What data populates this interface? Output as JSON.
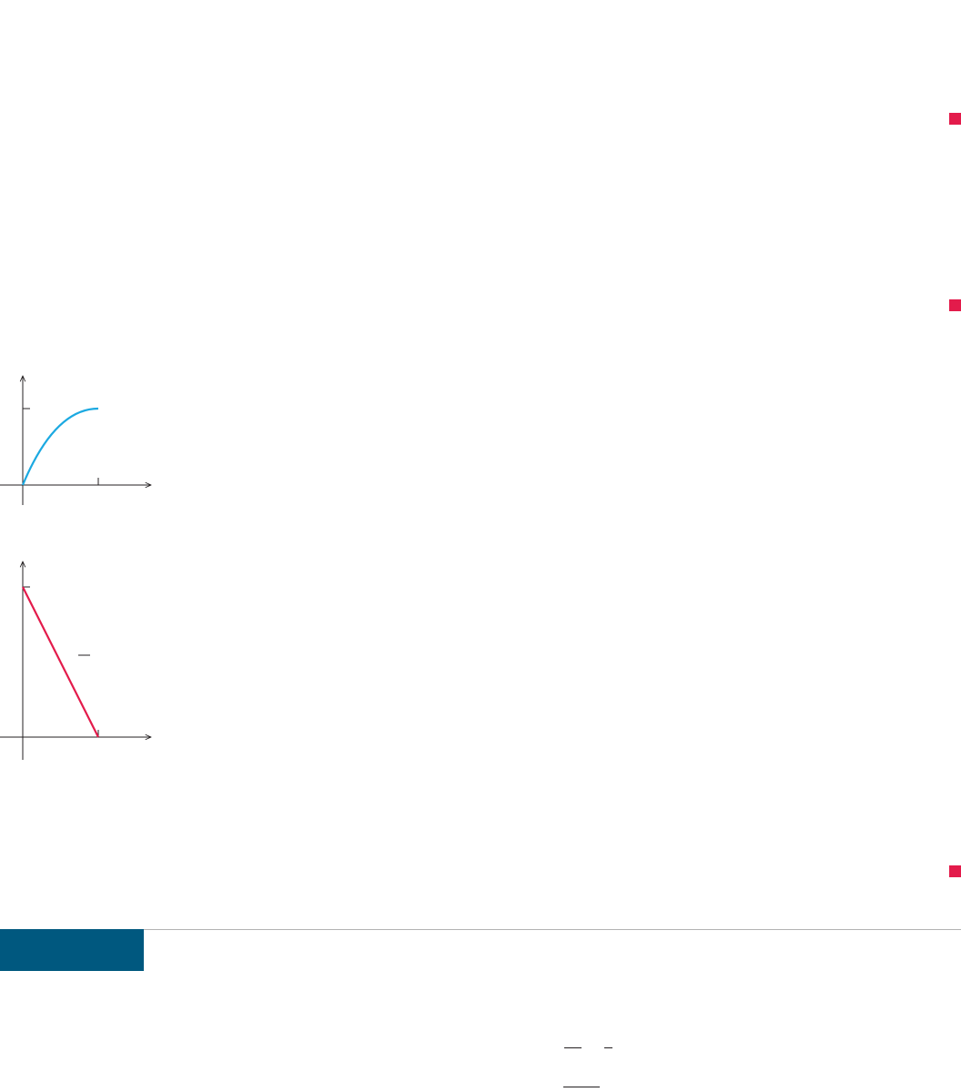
{
  "colors": {
    "marker": "#e31b4b",
    "blue_curve": "#1ba9e1",
    "red_line": "#e31b4b",
    "axis": "#231f20",
    "section_bar": "#00587f",
    "divider": "#b3b3b3"
  },
  "margin_markers": [
    {
      "name": "margin-marker-1"
    },
    {
      "name": "margin-marker-2"
    },
    {
      "name": "margin-marker-3"
    }
  ],
  "graph_top": {
    "type": "line",
    "curve": "concave-increasing",
    "x_range": [
      0,
      1
    ],
    "y_range": [
      0,
      1
    ]
  },
  "graph_bottom": {
    "type": "line",
    "curve": "linear-decreasing",
    "x_range": [
      0,
      1
    ],
    "y_range": [
      0,
      1
    ]
  }
}
